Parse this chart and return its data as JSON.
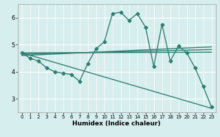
{
  "xlabel": "Humidex (Indice chaleur)",
  "ylabel": "",
  "bg_color": "#d6eeee",
  "line_color": "#2d7d70",
  "grid_color": "#ffffff",
  "grid_minor_color": "#f0c8c8",
  "xlim": [
    -0.5,
    23.5
  ],
  "ylim": [
    2.5,
    6.5
  ],
  "yticks": [
    3,
    4,
    5,
    6
  ],
  "xticks": [
    0,
    1,
    2,
    3,
    4,
    5,
    6,
    7,
    8,
    9,
    10,
    11,
    12,
    13,
    14,
    15,
    16,
    17,
    18,
    19,
    20,
    21,
    22,
    23
  ],
  "series": [
    {
      "x": [
        0,
        1,
        2,
        3,
        4,
        5,
        6,
        7,
        8,
        9,
        10,
        11,
        12,
        13,
        14,
        15,
        16,
        17,
        18,
        19,
        20,
        21,
        22,
        23
      ],
      "y": [
        4.7,
        4.5,
        4.4,
        4.15,
        4.0,
        3.95,
        3.9,
        3.65,
        4.3,
        4.85,
        5.1,
        6.15,
        6.2,
        5.9,
        6.15,
        5.65,
        4.2,
        5.75,
        4.4,
        4.95,
        4.7,
        4.15,
        3.45,
        2.7
      ],
      "marker": "D",
      "markersize": 2.5,
      "linewidth": 1.0
    },
    {
      "x": [
        0,
        23
      ],
      "y": [
        4.7,
        4.72
      ],
      "marker": null,
      "linewidth": 1.0
    },
    {
      "x": [
        0,
        23
      ],
      "y": [
        4.65,
        4.82
      ],
      "marker": null,
      "linewidth": 1.0
    },
    {
      "x": [
        0,
        23
      ],
      "y": [
        4.6,
        4.92
      ],
      "marker": null,
      "linewidth": 1.0
    },
    {
      "x": [
        0,
        23
      ],
      "y": [
        4.7,
        2.65
      ],
      "marker": null,
      "linewidth": 1.0
    }
  ]
}
